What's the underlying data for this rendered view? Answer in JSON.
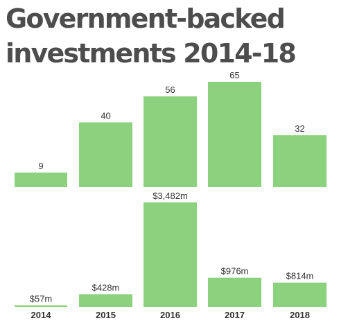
{
  "title": "Government-backed investments 2014-18",
  "colors": {
    "bar": "#8cd17d",
    "bar_border": "#73bc65",
    "text": "#333333",
    "title": "#4d4d4d"
  },
  "chart_data": [
    {
      "type": "bar",
      "title": "Government-backed investments 2014-18",
      "categories": [
        "2014",
        "2015",
        "2016",
        "2017",
        "2018"
      ],
      "values": [
        9,
        40,
        56,
        65,
        32
      ],
      "data_labels": [
        "9",
        "40",
        "56",
        "65",
        "32"
      ],
      "ylim": [
        0,
        65
      ],
      "grid": false,
      "xlabel": "",
      "ylabel": ""
    },
    {
      "type": "bar",
      "categories": [
        "2014",
        "2015",
        "2016",
        "2017",
        "2018"
      ],
      "values": [
        57,
        428,
        3482,
        976,
        814
      ],
      "data_labels": [
        "$57m",
        "$428m",
        "$3,482m",
        "$976m",
        "$814m"
      ],
      "ylim": [
        0,
        3482
      ],
      "grid": false,
      "xlabel": "",
      "ylabel": ""
    }
  ]
}
